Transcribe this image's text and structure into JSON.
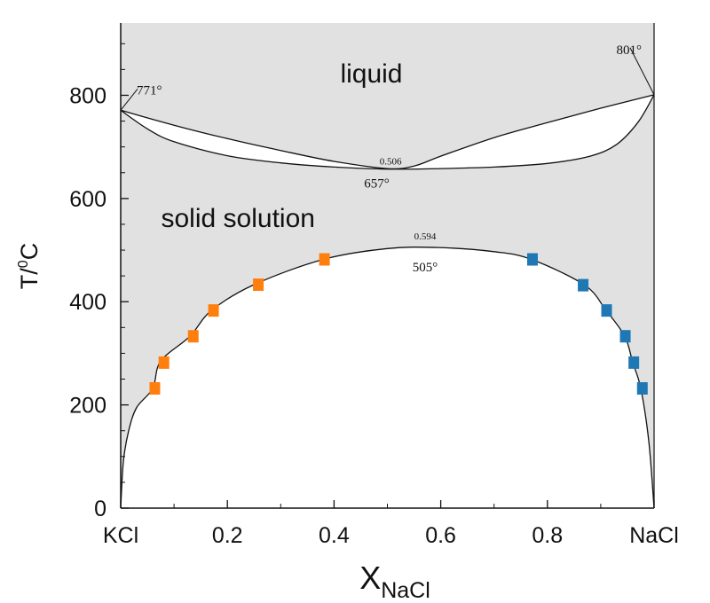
{
  "chart_data": {
    "type": "scatter",
    "title": "",
    "xlabel": {
      "main": "X",
      "subscript": "NaCl"
    },
    "ylabel": {
      "base": "T/",
      "superscript": "0",
      "unit": "C"
    },
    "xlim": [
      0,
      1
    ],
    "ylim": [
      0,
      940
    ],
    "x_ticks": [
      {
        "value": 0,
        "label": "KCl"
      },
      {
        "value": 0.2,
        "label": "0.2"
      },
      {
        "value": 0.4,
        "label": "0.4"
      },
      {
        "value": 0.6,
        "label": "0.6"
      },
      {
        "value": 0.8,
        "label": "0.8"
      },
      {
        "value": 1,
        "label": "NaCl"
      }
    ],
    "y_ticks": [
      {
        "value": 0,
        "label": "0"
      },
      {
        "value": 200,
        "label": "200"
      },
      {
        "value": 400,
        "label": "400"
      },
      {
        "value": 600,
        "label": "600"
      },
      {
        "value": 800,
        "label": "800"
      }
    ],
    "regions": [
      {
        "label": "liquid",
        "x": 0.47,
        "y": 825
      },
      {
        "label": "solid solution",
        "x": 0.22,
        "y": 545
      }
    ],
    "curves": {
      "liquidus": [
        [
          0,
          771
        ],
        [
          0.1,
          742
        ],
        [
          0.2,
          716
        ],
        [
          0.3,
          693
        ],
        [
          0.4,
          672
        ],
        [
          0.5,
          658
        ],
        [
          0.55,
          663
        ],
        [
          0.6,
          682
        ],
        [
          0.7,
          718
        ],
        [
          0.8,
          747
        ],
        [
          0.9,
          775
        ],
        [
          1,
          801
        ]
      ],
      "solidus": [
        [
          0,
          771
        ],
        [
          0.05,
          735
        ],
        [
          0.1,
          710
        ],
        [
          0.2,
          683
        ],
        [
          0.3,
          669
        ],
        [
          0.4,
          661
        ],
        [
          0.5,
          657
        ],
        [
          0.6,
          658
        ],
        [
          0.7,
          661
        ],
        [
          0.8,
          668
        ],
        [
          0.88,
          682
        ],
        [
          0.93,
          705
        ],
        [
          0.97,
          748
        ],
        [
          1,
          801
        ]
      ],
      "solvus": [
        [
          0,
          0
        ],
        [
          0.005,
          90
        ],
        [
          0.015,
          150
        ],
        [
          0.03,
          195
        ],
        [
          0.06,
          232
        ],
        [
          0.075,
          285
        ],
        [
          0.13,
          333
        ],
        [
          0.17,
          383
        ],
        [
          0.25,
          433
        ],
        [
          0.38,
          482
        ],
        [
          0.5,
          503
        ],
        [
          0.594,
          505
        ],
        [
          0.7,
          497
        ],
        [
          0.77,
          482
        ],
        [
          0.87,
          432
        ],
        [
          0.91,
          383
        ],
        [
          0.945,
          333
        ],
        [
          0.96,
          282
        ],
        [
          0.975,
          232
        ],
        [
          0.99,
          130
        ],
        [
          1,
          0
        ]
      ]
    },
    "series": [
      {
        "color": "#ff7f0e",
        "marker": "square",
        "points": [
          [
            0.064,
            232
          ],
          [
            0.081,
            282
          ],
          [
            0.136,
            333
          ],
          [
            0.174,
            383
          ],
          [
            0.258,
            433
          ],
          [
            0.382,
            482
          ]
        ]
      },
      {
        "color": "#1f77b4",
        "marker": "square",
        "points": [
          [
            0.772,
            482
          ],
          [
            0.867,
            432
          ],
          [
            0.911,
            383
          ],
          [
            0.946,
            333
          ],
          [
            0.962,
            282
          ],
          [
            0.978,
            232
          ]
        ]
      }
    ],
    "annotations": [
      {
        "text": "771°",
        "x": 0,
        "y": 771,
        "style": "temp"
      },
      {
        "text": "801°",
        "x": 1,
        "y": 801,
        "style": "temp"
      },
      {
        "text": "0.506",
        "x": 0.506,
        "y": 657,
        "style": "small"
      },
      {
        "text": "657°",
        "x": 0.5,
        "y": 657,
        "style": "temp"
      },
      {
        "text": "0.594",
        "x": 0.594,
        "y": 505,
        "style": "small"
      },
      {
        "text": "505°",
        "x": 0.594,
        "y": 505,
        "style": "temp"
      }
    ],
    "grid": false,
    "background_shading": "#e1e1e1"
  }
}
